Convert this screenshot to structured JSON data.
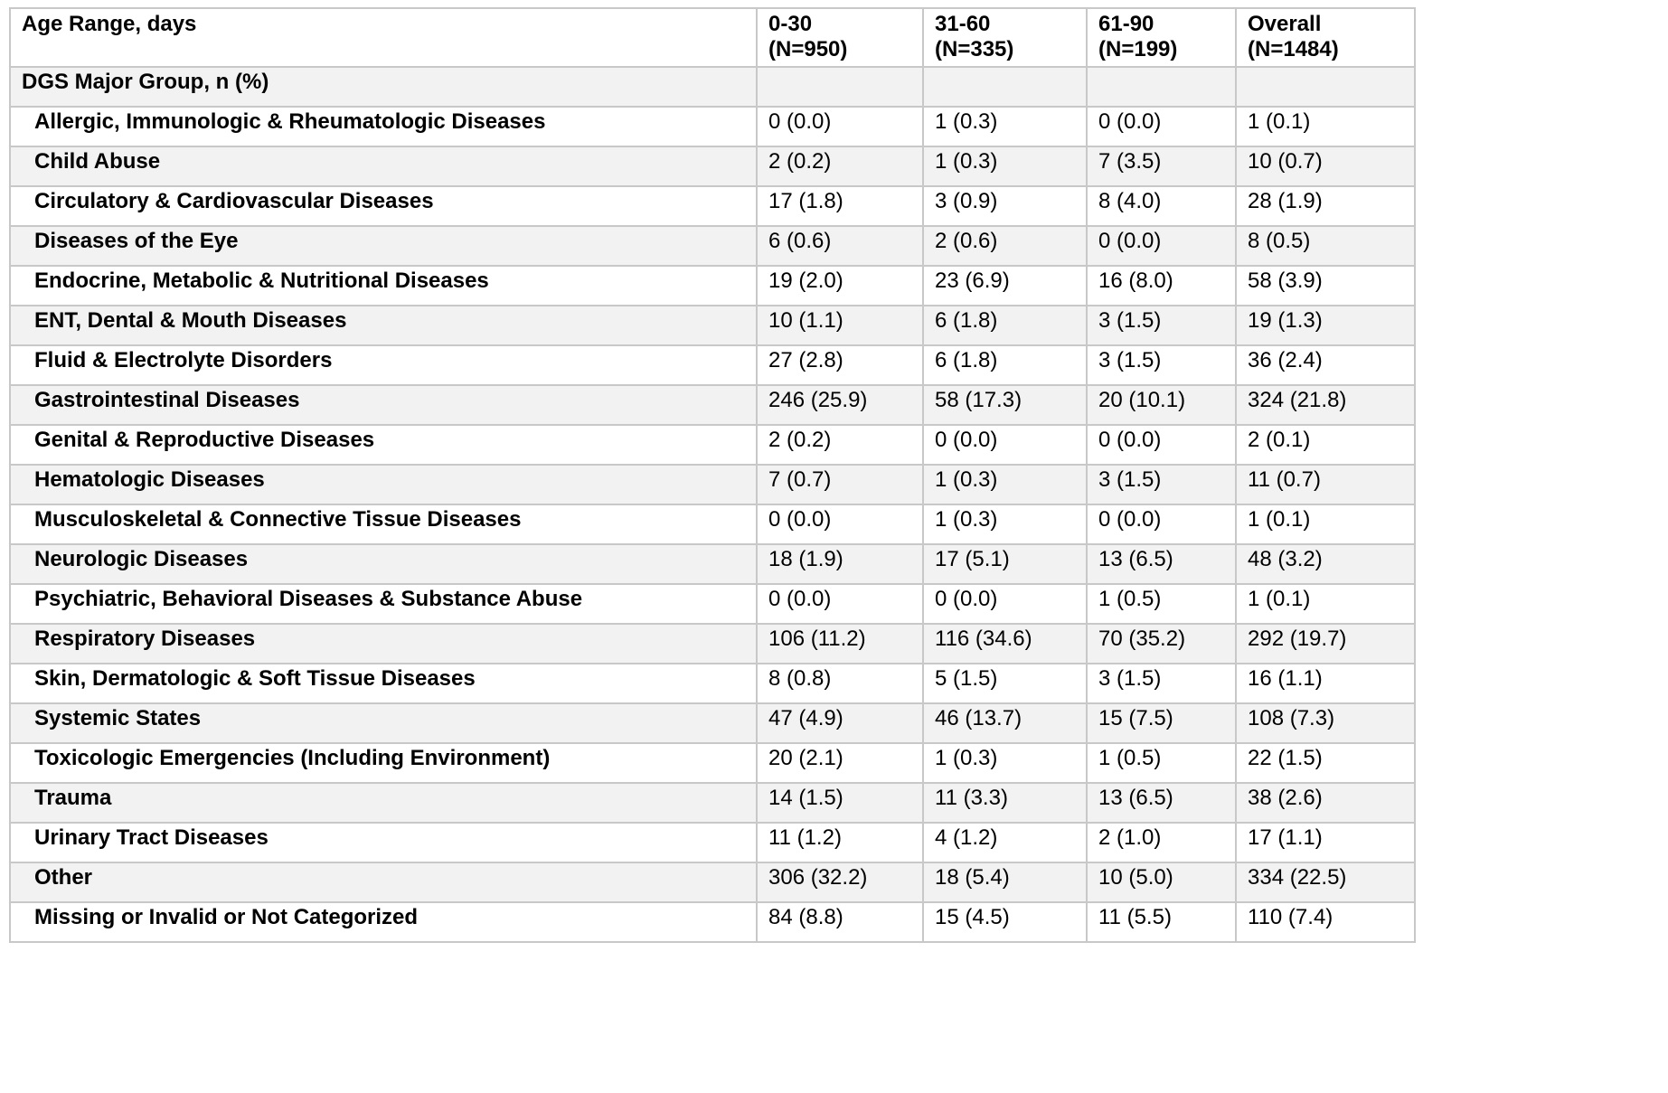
{
  "table": {
    "header": {
      "label": "Age Range, days",
      "columns": [
        {
          "line1": "0-30",
          "line2": "(N=950)"
        },
        {
          "line1": "31-60",
          "line2": "(N=335)"
        },
        {
          "line1": "61-90",
          "line2": "(N=199)"
        },
        {
          "line1": "Overall",
          "line2": "(N=1484)"
        }
      ]
    },
    "group_label": "DGS Major Group, n (%)",
    "rows": [
      {
        "label": "Allergic, Immunologic & Rheumatologic Diseases",
        "v": [
          "0 (0.0)",
          "1 (0.3)",
          "0 (0.0)",
          "1 (0.1)"
        ]
      },
      {
        "label": "Child Abuse",
        "v": [
          "2 (0.2)",
          "1 (0.3)",
          "7 (3.5)",
          "10 (0.7)"
        ]
      },
      {
        "label": "Circulatory & Cardiovascular Diseases",
        "v": [
          "17 (1.8)",
          "3 (0.9)",
          "8 (4.0)",
          "28 (1.9)"
        ]
      },
      {
        "label": "Diseases of the Eye",
        "v": [
          "6 (0.6)",
          "2 (0.6)",
          "0 (0.0)",
          "8 (0.5)"
        ]
      },
      {
        "label": "Endocrine, Metabolic & Nutritional Diseases",
        "v": [
          "19 (2.0)",
          "23 (6.9)",
          "16 (8.0)",
          "58 (3.9)"
        ]
      },
      {
        "label": "ENT, Dental & Mouth Diseases",
        "v": [
          "10 (1.1)",
          "6 (1.8)",
          "3 (1.5)",
          "19 (1.3)"
        ]
      },
      {
        "label": "Fluid & Electrolyte Disorders",
        "v": [
          "27 (2.8)",
          "6 (1.8)",
          "3 (1.5)",
          "36 (2.4)"
        ]
      },
      {
        "label": "Gastrointestinal Diseases",
        "v": [
          "246 (25.9)",
          "58 (17.3)",
          "20 (10.1)",
          "324 (21.8)"
        ]
      },
      {
        "label": "Genital & Reproductive Diseases",
        "v": [
          "2 (0.2)",
          "0 (0.0)",
          "0 (0.0)",
          "2 (0.1)"
        ]
      },
      {
        "label": "Hematologic Diseases",
        "v": [
          "7 (0.7)",
          "1 (0.3)",
          "3 (1.5)",
          "11 (0.7)"
        ]
      },
      {
        "label": "Musculoskeletal & Connective Tissue Diseases",
        "v": [
          "0 (0.0)",
          "1 (0.3)",
          "0 (0.0)",
          "1 (0.1)"
        ]
      },
      {
        "label": "Neurologic Diseases",
        "v": [
          "18 (1.9)",
          "17 (5.1)",
          "13 (6.5)",
          "48 (3.2)"
        ]
      },
      {
        "label": "Psychiatric, Behavioral Diseases & Substance Abuse",
        "v": [
          "0 (0.0)",
          "0 (0.0)",
          "1 (0.5)",
          "1 (0.1)"
        ]
      },
      {
        "label": "Respiratory Diseases",
        "v": [
          "106 (11.2)",
          "116 (34.6)",
          "70 (35.2)",
          "292 (19.7)"
        ]
      },
      {
        "label": "Skin, Dermatologic & Soft Tissue Diseases",
        "v": [
          "8 (0.8)",
          "5 (1.5)",
          "3 (1.5)",
          "16 (1.1)"
        ]
      },
      {
        "label": "Systemic States",
        "v": [
          "47 (4.9)",
          "46 (13.7)",
          "15 (7.5)",
          "108 (7.3)"
        ]
      },
      {
        "label": "Toxicologic Emergencies (Including Environment)",
        "v": [
          "20 (2.1)",
          "1 (0.3)",
          "1 (0.5)",
          "22 (1.5)"
        ]
      },
      {
        "label": "Trauma",
        "v": [
          "14 (1.5)",
          "11 (3.3)",
          "13 (6.5)",
          "38 (2.6)"
        ]
      },
      {
        "label": "Urinary Tract Diseases",
        "v": [
          "11 (1.2)",
          "4 (1.2)",
          "2 (1.0)",
          "17 (1.1)"
        ]
      },
      {
        "label": "Other",
        "v": [
          "306 (32.2)",
          "18 (5.4)",
          "10 (5.0)",
          "334 (22.5)"
        ]
      },
      {
        "label": "Missing or Invalid or Not Categorized",
        "v": [
          "84 (8.8)",
          "15 (4.5)",
          "11 (5.5)",
          "110 (7.4)"
        ]
      }
    ]
  }
}
